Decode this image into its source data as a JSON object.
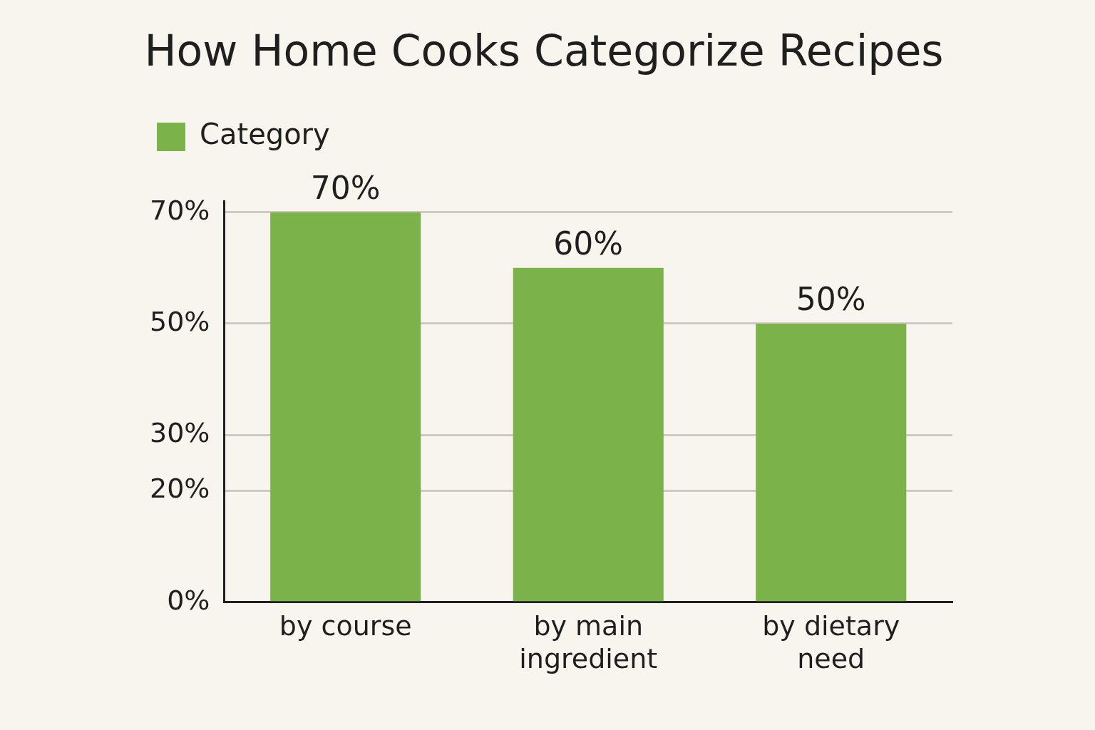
{
  "chart_data": {
    "type": "bar",
    "title": "How Home Cooks Categorize Recipes",
    "categories": [
      "by course",
      "by main ingredient",
      "by dietary need"
    ],
    "series": [
      {
        "name": "Category",
        "color": "#7cb24a",
        "values": [
          70,
          60,
          50
        ],
        "value_labels": [
          "70%",
          "60%",
          "50%"
        ]
      }
    ],
    "ylim": [
      0,
      72
    ],
    "yticks": [
      {
        "value": 0,
        "label": "0%"
      },
      {
        "value": 20,
        "label": "20%"
      },
      {
        "value": 30,
        "label": "30%"
      },
      {
        "value": 50,
        "label": "50%"
      },
      {
        "value": 70,
        "label": "70%"
      }
    ],
    "grid": "y",
    "legend": "top left"
  }
}
